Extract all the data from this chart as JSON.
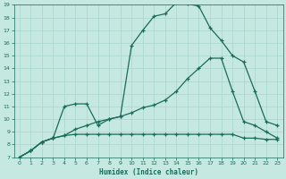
{
  "xlabel": "Humidex (Indice chaleur)",
  "xlim": [
    -0.5,
    23.5
  ],
  "ylim": [
    7,
    19
  ],
  "xticks": [
    0,
    1,
    2,
    3,
    4,
    5,
    6,
    7,
    8,
    9,
    10,
    11,
    12,
    13,
    14,
    15,
    16,
    17,
    18,
    19,
    20,
    21,
    22,
    23
  ],
  "yticks": [
    7,
    8,
    9,
    10,
    11,
    12,
    13,
    14,
    15,
    16,
    17,
    18,
    19
  ],
  "bg_color": "#c5e8e0",
  "grid_color": "#a8d4cc",
  "line_color": "#1a6b5a",
  "line1_x": [
    0,
    1,
    2,
    3,
    4,
    5,
    6,
    7,
    8,
    9,
    10,
    11,
    12,
    13,
    14,
    15,
    16,
    17,
    18,
    19,
    20,
    21,
    22,
    23
  ],
  "line1_y": [
    7.0,
    7.5,
    8.2,
    8.5,
    11.0,
    11.2,
    11.2,
    9.5,
    10.0,
    10.2,
    15.8,
    17.0,
    18.1,
    18.3,
    19.2,
    19.1,
    18.9,
    17.2,
    16.2,
    15.0,
    14.5,
    12.2,
    9.8,
    9.5
  ],
  "line2_x": [
    0,
    1,
    2,
    3,
    4,
    5,
    6,
    7,
    8,
    9,
    10,
    11,
    12,
    13,
    14,
    15,
    16,
    17,
    18,
    19,
    20,
    21,
    22,
    23
  ],
  "line2_y": [
    7.0,
    7.5,
    8.2,
    8.5,
    8.7,
    9.2,
    9.5,
    9.8,
    10.0,
    10.2,
    10.5,
    10.9,
    11.1,
    11.5,
    12.2,
    13.2,
    14.0,
    14.8,
    14.8,
    12.2,
    9.8,
    9.5,
    9.0,
    8.5
  ],
  "line3_x": [
    0,
    1,
    2,
    3,
    4,
    5,
    6,
    7,
    8,
    9,
    10,
    11,
    12,
    13,
    14,
    15,
    16,
    17,
    18,
    19,
    20,
    21,
    22,
    23
  ],
  "line3_y": [
    7.0,
    7.5,
    8.2,
    8.5,
    8.7,
    8.8,
    8.8,
    8.8,
    8.8,
    8.8,
    8.8,
    8.8,
    8.8,
    8.8,
    8.8,
    8.8,
    8.8,
    8.8,
    8.8,
    8.8,
    8.5,
    8.5,
    8.4,
    8.4
  ]
}
